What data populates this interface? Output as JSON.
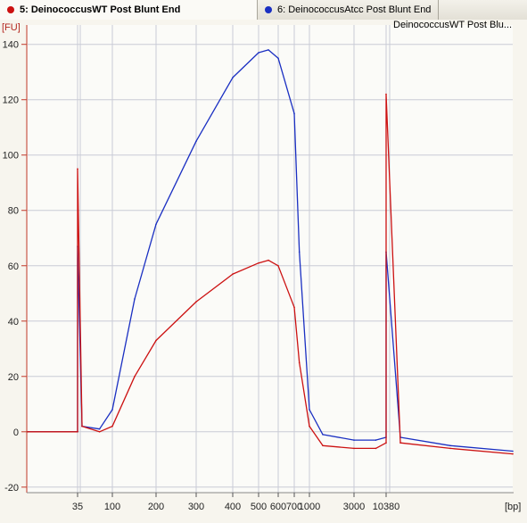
{
  "tabs": [
    {
      "label": "5: DeinococcusWT Post Blunt End",
      "color": "#cc1111",
      "active": true
    },
    {
      "label": "6: DeinococcusAtcc Post Blunt End",
      "color": "#1a2fc2",
      "active": false
    }
  ],
  "chart_data": {
    "type": "line",
    "title": "",
    "legend_text": "DeinococcusWT Post Blu...",
    "ylabel": "[FU]",
    "xlabel": "[bp]",
    "ylim": [
      -22,
      147
    ],
    "yticks": [
      -20,
      0,
      20,
      40,
      60,
      80,
      100,
      120,
      140
    ],
    "xticks": [
      "35",
      "100",
      "200",
      "300",
      "400",
      "500",
      "600",
      "700",
      "1000",
      "3000",
      "10380"
    ],
    "x_scale": "electropherogram (ladder-based, non-linear)",
    "grid": true,
    "series": [
      {
        "name": "5: DeinococcusWT Post Blunt End",
        "color": "#cc1111",
        "x": [
          "15",
          "35",
          "35",
          "40",
          "70",
          "100",
          "150",
          "200",
          "300",
          "400",
          "500",
          "550",
          "600",
          "700",
          "800",
          "1000",
          "1500",
          "3000",
          "8000",
          "10380",
          "10380",
          "12000",
          "17000",
          "25000"
        ],
        "y": [
          0,
          0,
          95,
          2,
          0,
          2,
          20,
          33,
          47,
          57,
          61,
          62,
          60,
          45,
          25,
          2,
          -5,
          -6,
          -6,
          -4,
          122,
          -4,
          -6,
          -8
        ]
      },
      {
        "name": "6: DeinococcusAtcc Post Blunt End",
        "color": "#1a2fc2",
        "x": [
          "15",
          "35",
          "35",
          "40",
          "70",
          "100",
          "150",
          "200",
          "300",
          "400",
          "500",
          "550",
          "600",
          "700",
          "800",
          "1000",
          "1500",
          "3000",
          "8000",
          "10380",
          "10380",
          "12000",
          "17000",
          "25000"
        ],
        "y": [
          0,
          0,
          67,
          2,
          1,
          8,
          48,
          75,
          105,
          128,
          137,
          138,
          135,
          115,
          65,
          8,
          -1,
          -3,
          -3,
          -2,
          65,
          -2,
          -5,
          -7
        ]
      }
    ]
  }
}
